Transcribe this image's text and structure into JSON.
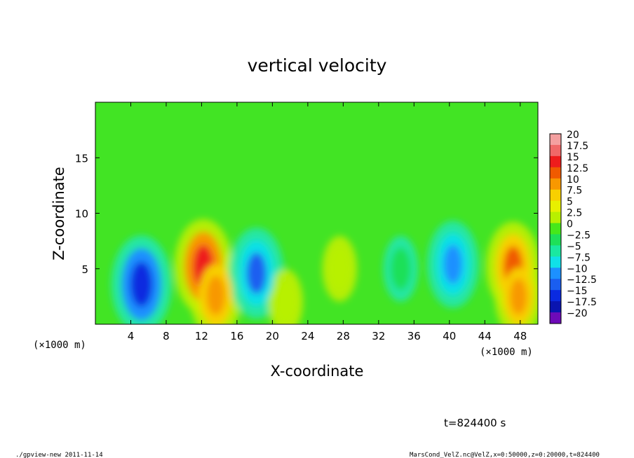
{
  "chart_data": {
    "type": "heatmap",
    "title": "vertical velocity",
    "xlabel": "X-coordinate",
    "ylabel": "Z-coordinate",
    "x_unit_left": "(×1000 m)",
    "x_unit_right": "(×1000 m)",
    "xlim": [
      0,
      50
    ],
    "ylim": [
      0,
      20
    ],
    "xticks": [
      4,
      8,
      12,
      16,
      20,
      24,
      28,
      32,
      36,
      40,
      44,
      48
    ],
    "yticks": [
      5,
      10,
      15
    ],
    "colorbar_ticks": [
      "20",
      "17.5",
      "15",
      "12.5",
      "10",
      "7.5",
      "5",
      "2.5",
      "0",
      "−2.5",
      "−5",
      "−7.5",
      "−10",
      "−12.5",
      "−15",
      "−17.5",
      "−20"
    ],
    "colorbar_values": [
      20,
      17.5,
      15,
      12.5,
      10,
      7.5,
      5,
      2.5,
      0,
      -2.5,
      -5,
      -7.5,
      -10,
      -12.5,
      -15,
      -17.5,
      -20
    ],
    "colorbar_colors": [
      "#f4a0a0",
      "#f06868",
      "#ee1c1c",
      "#f05a00",
      "#f89800",
      "#f8d000",
      "#e8f000",
      "#b8f000",
      "#46e81a",
      "#1ee058",
      "#1ae8a0",
      "#10e0e8",
      "#1c90ff",
      "#1a5ef0",
      "#0a2ae0",
      "#0a14b0",
      "#6e0ab8"
    ],
    "features": [
      {
        "x": 5.2,
        "z": 3.6,
        "w": -15
      },
      {
        "x": 12.2,
        "z": 5.2,
        "w": 14
      },
      {
        "x": 13.6,
        "z": 2.6,
        "w": 11
      },
      {
        "x": 18.2,
        "z": 4.6,
        "w": -12.5
      },
      {
        "x": 21.5,
        "z": 2.0,
        "w": 3
      },
      {
        "x": 27.6,
        "z": 5.0,
        "w": 3
      },
      {
        "x": 34.5,
        "z": 5.0,
        "w": -3
      },
      {
        "x": 40.4,
        "z": 5.4,
        "w": -11
      },
      {
        "x": 47.2,
        "z": 5.2,
        "w": 12
      },
      {
        "x": 47.8,
        "z": 2.5,
        "w": 9
      }
    ],
    "grid": false,
    "legend": "colorbar-right"
  },
  "annotations": {
    "time": "t=824400 s",
    "footer_left": "./gpview-new 2011-11-14",
    "footer_right": "MarsCond_VelZ.nc@VelZ,x=0:50000,z=0:20000,t=824400"
  }
}
